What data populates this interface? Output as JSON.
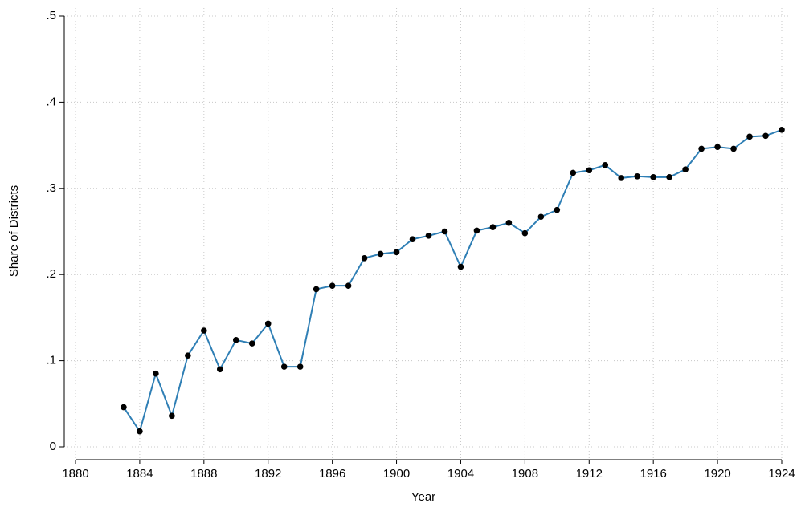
{
  "chart_data": {
    "type": "line",
    "xlabel": "Year",
    "ylabel": "Share of Districts",
    "x": [
      1883,
      1884,
      1885,
      1886,
      1887,
      1888,
      1889,
      1890,
      1891,
      1892,
      1893,
      1894,
      1895,
      1896,
      1897,
      1898,
      1899,
      1900,
      1901,
      1902,
      1903,
      1904,
      1905,
      1906,
      1907,
      1908,
      1909,
      1910,
      1911,
      1912,
      1913,
      1914,
      1915,
      1916,
      1917,
      1918,
      1919,
      1920,
      1921,
      1922,
      1923,
      1924
    ],
    "values": [
      0.046,
      0.018,
      0.085,
      0.036,
      0.106,
      0.135,
      0.09,
      0.124,
      0.12,
      0.143,
      0.093,
      0.093,
      0.183,
      0.187,
      0.187,
      0.219,
      0.224,
      0.226,
      0.241,
      0.245,
      0.25,
      0.209,
      0.251,
      0.255,
      0.26,
      0.248,
      0.267,
      0.275,
      0.318,
      0.321,
      0.327,
      0.312,
      0.314,
      0.313,
      0.313,
      0.322,
      0.346,
      0.348,
      0.346,
      0.36,
      0.361,
      0.368
    ],
    "color": "#2f7fb5",
    "marker_color": "#000000",
    "xlim": [
      1880,
      1924
    ],
    "xticks": [
      1880,
      1884,
      1888,
      1892,
      1896,
      1900,
      1904,
      1908,
      1912,
      1916,
      1920,
      1924
    ],
    "ylim": [
      0,
      0.5
    ],
    "yticks": [
      0,
      {
        "value": 0.1,
        "label": ".1"
      },
      {
        "value": 0.2,
        "label": ".2"
      },
      {
        "value": 0.3,
        "label": ".3"
      },
      {
        "value": 0.4,
        "label": ".4"
      },
      {
        "value": 0.5,
        "label": ".5"
      }
    ],
    "grid": true
  }
}
